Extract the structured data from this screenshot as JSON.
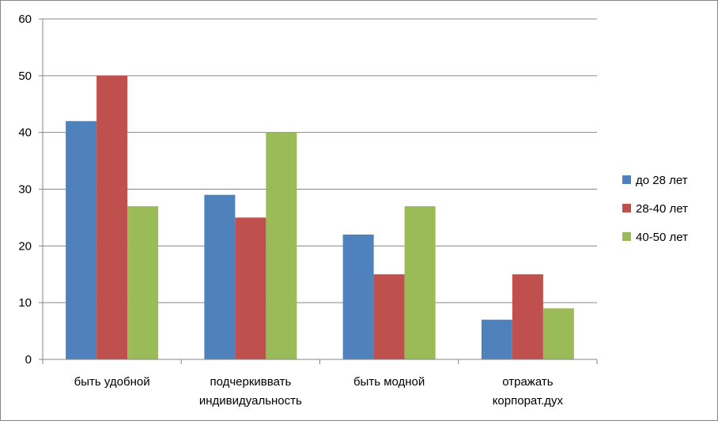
{
  "chart_data": {
    "type": "bar",
    "categories": [
      [
        "быть удобной"
      ],
      [
        "подчеркиввать",
        "индивидуальность"
      ],
      [
        "быть модной"
      ],
      [
        "отражать",
        "корпорат.дух"
      ]
    ],
    "series": [
      {
        "name": "до 28 лет",
        "color": "#4f81bd",
        "values": [
          42,
          29,
          22,
          7
        ]
      },
      {
        "name": "28-40 лет",
        "color": "#c0504d",
        "values": [
          50,
          25,
          15,
          15
        ]
      },
      {
        "name": "40-50 лет",
        "color": "#9bbb59",
        "values": [
          27,
          40,
          27,
          9
        ]
      }
    ],
    "ylim": [
      0,
      60
    ],
    "yticks": [
      0,
      10,
      20,
      30,
      40,
      50,
      60
    ],
    "grid": true,
    "legend": "right"
  }
}
